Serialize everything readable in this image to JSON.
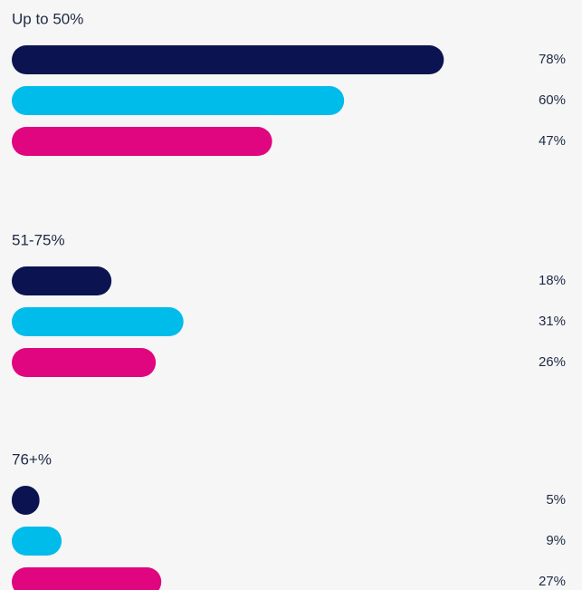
{
  "chart_data": {
    "type": "bar",
    "categories": [
      "Up to 50%",
      "51-75%",
      "76+%"
    ],
    "series": [
      {
        "color": "#0b1450",
        "values": [
          78,
          18,
          5
        ],
        "value_labels": [
          "78%",
          "18%",
          "5%"
        ]
      },
      {
        "color": "#00bceb",
        "values": [
          60,
          31,
          9
        ],
        "value_labels": [
          "60%",
          "31%",
          "9%"
        ]
      },
      {
        "color": "#e0067f",
        "values": [
          47,
          26,
          27
        ],
        "value_labels": [
          "47%",
          "26%",
          "27%"
        ]
      }
    ]
  }
}
